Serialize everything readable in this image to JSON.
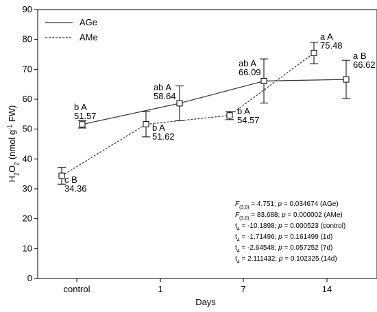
{
  "chart_data": {
    "type": "line",
    "categories": [
      "control",
      "1",
      "7",
      "14"
    ],
    "xlabel": "Days",
    "ylabel": {
      "parts": [
        {
          "text": "H",
          "style": "normal"
        },
        {
          "text": "2",
          "style": "sub"
        },
        {
          "text": "O",
          "style": "normal"
        },
        {
          "text": "2",
          "style": "sub"
        },
        {
          "text": " (nmol g",
          "style": "normal"
        },
        {
          "text": "-1",
          "style": "sup"
        },
        {
          "text": " FW)",
          "style": "normal"
        }
      ]
    },
    "ylim": [
      0,
      90
    ],
    "yticks": [
      0,
      10,
      20,
      30,
      40,
      50,
      60,
      70,
      80,
      90
    ],
    "grid": false,
    "legend_position": "top-left",
    "series": [
      {
        "name": "AGe",
        "line_style": "solid",
        "values": [
          51.57,
          58.64,
          66.09,
          66.62
        ],
        "errors": [
          1.2,
          5.8,
          7.4,
          6.4
        ],
        "labels": [
          [
            "b A",
            "51.57"
          ],
          [
            "ab A",
            "58.64"
          ],
          [
            "ab A",
            "66.09"
          ],
          [
            "a B",
            "66.62"
          ]
        ]
      },
      {
        "name": "AMe",
        "line_style": "dashed",
        "values": [
          34.36,
          51.62,
          54.57,
          75.48
        ],
        "errors": [
          2.8,
          4.2,
          1.4,
          3.6
        ],
        "labels": [
          [
            "c B",
            "34.36"
          ],
          [
            "b A",
            "51.62"
          ],
          [
            "b A",
            "54.57"
          ],
          [
            "a A",
            "75.48"
          ]
        ]
      }
    ],
    "annotations": [
      [
        {
          "text": "F",
          "style": "ital"
        },
        {
          "text": "(3,8)",
          "style": "sub"
        },
        {
          "text": " = 4.751; ",
          "style": "normal"
        },
        {
          "text": "p",
          "style": "ital"
        },
        {
          "text": " = 0.034674 (AGe)",
          "style": "normal"
        }
      ],
      [
        {
          "text": "F",
          "style": "ital"
        },
        {
          "text": "(3,8)",
          "style": "sub"
        },
        {
          "text": " = 83.688; ",
          "style": "normal"
        },
        {
          "text": "p",
          "style": "ital"
        },
        {
          "text": " = 0.000002 (AMe)",
          "style": "normal"
        }
      ],
      [
        {
          "text": "t",
          "style": "normal"
        },
        {
          "text": "4",
          "style": "sub"
        },
        {
          "text": " = -10.1898; ",
          "style": "normal"
        },
        {
          "text": "p",
          "style": "ital"
        },
        {
          "text": " = 0.000523 (control)",
          "style": "normal"
        }
      ],
      [
        {
          "text": "t",
          "style": "normal"
        },
        {
          "text": "4",
          "style": "sub"
        },
        {
          "text": " = -1.71496; ",
          "style": "normal"
        },
        {
          "text": "p",
          "style": "ital"
        },
        {
          "text": " = 0.161499 (1d)",
          "style": "normal"
        }
      ],
      [
        {
          "text": "t",
          "style": "normal"
        },
        {
          "text": "4",
          "style": "sub"
        },
        {
          "text": " = -2.64548; ",
          "style": "normal"
        },
        {
          "text": "p",
          "style": "ital"
        },
        {
          "text": " = 0.057252 (7d)",
          "style": "normal"
        }
      ],
      [
        {
          "text": "t",
          "style": "normal"
        },
        {
          "text": "4",
          "style": "sub"
        },
        {
          "text": " = 2.111432; ",
          "style": "normal"
        },
        {
          "text": "p",
          "style": "ital"
        },
        {
          "text": " = 0.102325 (14d)",
          "style": "normal"
        }
      ]
    ],
    "colors": {
      "line": "#333333",
      "axis": "#000000",
      "background": "#ffffff"
    }
  }
}
